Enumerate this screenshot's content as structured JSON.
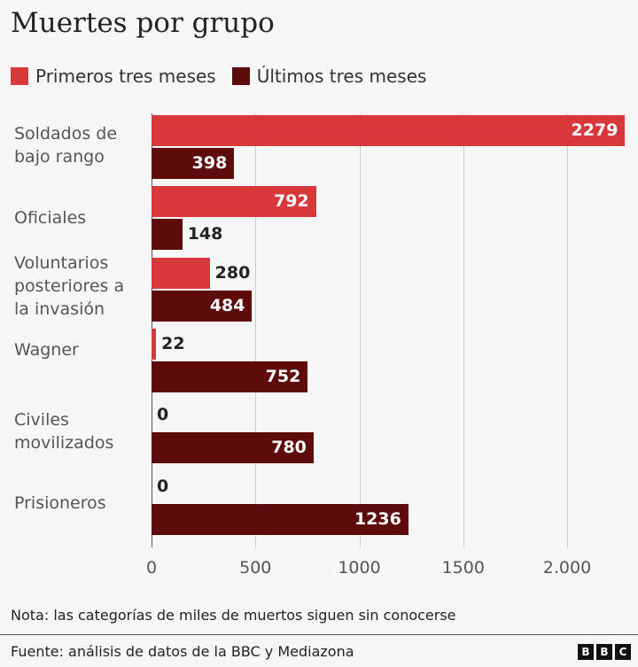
{
  "chart_data": {
    "type": "bar",
    "orientation": "horizontal",
    "title": "Muertes por grupo",
    "categories": [
      "Soldados de\nbajo rango",
      "Oficiales",
      "Voluntarios\nposteriores a\nla invasión",
      "Wagner",
      "Civiles\nmovilizados",
      "Prisioneros"
    ],
    "series": [
      {
        "name": "Primeros tres meses",
        "color": "#d9383a",
        "values": [
          2279,
          792,
          280,
          22,
          0,
          0
        ]
      },
      {
        "name": "Últimos tres meses",
        "color": "#5e0b0b",
        "values": [
          398,
          148,
          484,
          752,
          780,
          1236
        ]
      }
    ],
    "xlim": [
      0,
      2279
    ],
    "xticks": [
      0,
      500,
      1000,
      1500,
      2000
    ],
    "xtick_labels": [
      "0",
      "500",
      "1000",
      "1500",
      "2.000"
    ],
    "grid": true,
    "legend": "top-left"
  },
  "note": "Nota: las categorías de miles de muertos siguen sin conocerse",
  "source": "Fuente: análisis de datos de la BBC y Mediazona",
  "logo": "BBC"
}
